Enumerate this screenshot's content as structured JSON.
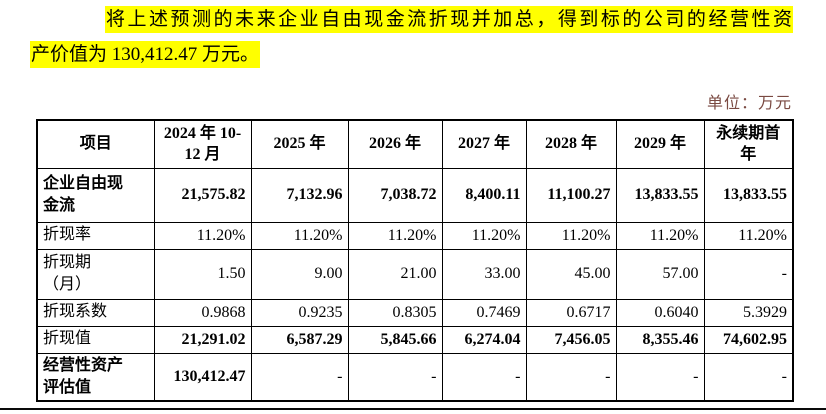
{
  "colors": {
    "highlight": "#ffff00",
    "unit_label_color": "#7a4a42",
    "table_border": "#000000",
    "ink": "#000000"
  },
  "paragraph": {
    "line1": "将上述预测的未来企业自由现金流折现并加总，得到标的公司的经营性资",
    "line2": "产价值为 130,412.47 万元。"
  },
  "unit_label": "单位：万元",
  "table": {
    "columns": [
      "项目",
      "2024 年 10-\n12 月",
      "2025 年",
      "2026 年",
      "2027 年",
      "2028 年",
      "2029 年",
      "永续期首\n年"
    ],
    "rows": [
      {
        "label": "企业自由现\n金流",
        "bold_label": true,
        "bold_values": true,
        "values": [
          "21,575.82",
          "7,132.96",
          "7,038.72",
          "8,400.11",
          "11,100.27",
          "13,833.55",
          "13,833.55"
        ]
      },
      {
        "label": "折现率",
        "bold_label": false,
        "bold_values": false,
        "values": [
          "11.20%",
          "11.20%",
          "11.20%",
          "11.20%",
          "11.20%",
          "11.20%",
          "11.20%"
        ]
      },
      {
        "label": "折现期\n（月）",
        "bold_label": false,
        "bold_values": false,
        "values": [
          "1.50",
          "9.00",
          "21.00",
          "33.00",
          "45.00",
          "57.00",
          "-"
        ]
      },
      {
        "label": "折现系数",
        "bold_label": false,
        "bold_values": false,
        "values": [
          "0.9868",
          "0.9235",
          "0.8305",
          "0.7469",
          "0.6717",
          "0.6040",
          "5.3929"
        ]
      },
      {
        "label": "折现值",
        "bold_label": false,
        "bold_values": true,
        "values": [
          "21,291.02",
          "6,587.29",
          "5,845.66",
          "6,274.04",
          "7,456.05",
          "8,355.46",
          "74,602.95"
        ]
      },
      {
        "label": "经营性资产\n评估值",
        "bold_label": true,
        "bold_values": true,
        "values": [
          "130,412.47",
          "-",
          "-",
          "-",
          "-",
          "-",
          "-"
        ]
      }
    ]
  }
}
